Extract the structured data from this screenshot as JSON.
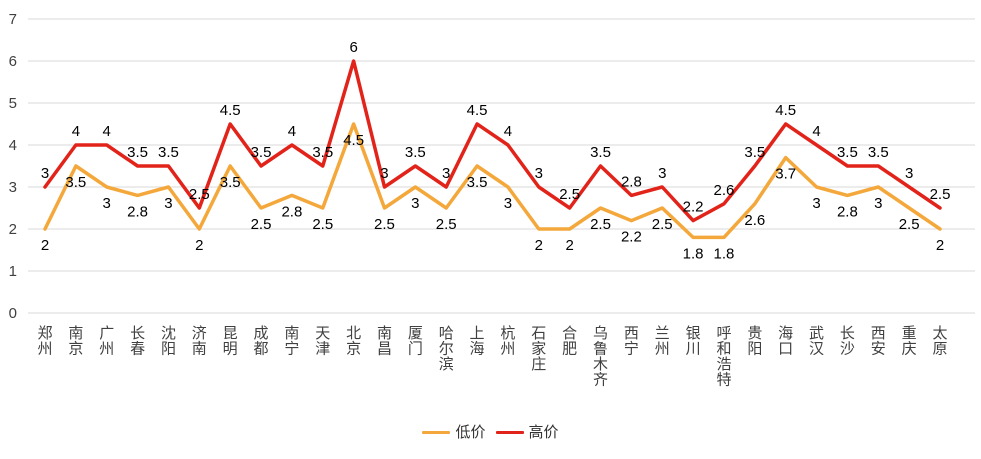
{
  "chart_data": {
    "type": "line",
    "title": "",
    "xlabel": "",
    "ylabel": "",
    "ylim": [
      0,
      7
    ],
    "y_ticks": [
      0,
      1,
      2,
      3,
      4,
      5,
      6,
      7
    ],
    "grid": "horizontal",
    "legend_position": "bottom",
    "data_labels": true,
    "categories": [
      "郑州",
      "南京",
      "广州",
      "长春",
      "沈阳",
      "济南",
      "昆明",
      "成都",
      "南宁",
      "天津",
      "北京",
      "南昌",
      "厦门",
      "哈尔滨",
      "上海",
      "杭州",
      "石家庄",
      "合肥",
      "乌鲁木齐",
      "西宁",
      "兰州",
      "银川",
      "呼和浩特",
      "贵阳",
      "海口",
      "武汉",
      "长沙",
      "西安",
      "重庆",
      "太原"
    ],
    "series": [
      {
        "name": "低价",
        "color": "#F4A83B",
        "label_position": "below",
        "values": [
          2,
          3.5,
          3,
          2.8,
          3,
          2,
          3.5,
          2.5,
          2.8,
          2.5,
          4.5,
          2.5,
          3,
          2.5,
          3.5,
          3,
          2,
          2,
          2.5,
          2.2,
          2.5,
          1.8,
          1.8,
          2.6,
          3.7,
          3,
          2.8,
          3,
          2.5,
          2
        ]
      },
      {
        "name": "高价",
        "color": "#E2231A",
        "label_position": "above",
        "values": [
          3,
          4,
          4,
          3.5,
          3.5,
          2.5,
          4.5,
          3.5,
          4,
          3.5,
          6,
          3,
          3.5,
          3,
          4.5,
          4,
          3,
          2.5,
          3.5,
          2.8,
          3,
          2.2,
          2.6,
          3.5,
          4.5,
          4,
          3.5,
          3.5,
          3,
          2.5
        ]
      }
    ]
  },
  "style_colors": {
    "gridline": "#D9D9D9",
    "axis_text": "#404040",
    "data_label_text": "#000000"
  }
}
